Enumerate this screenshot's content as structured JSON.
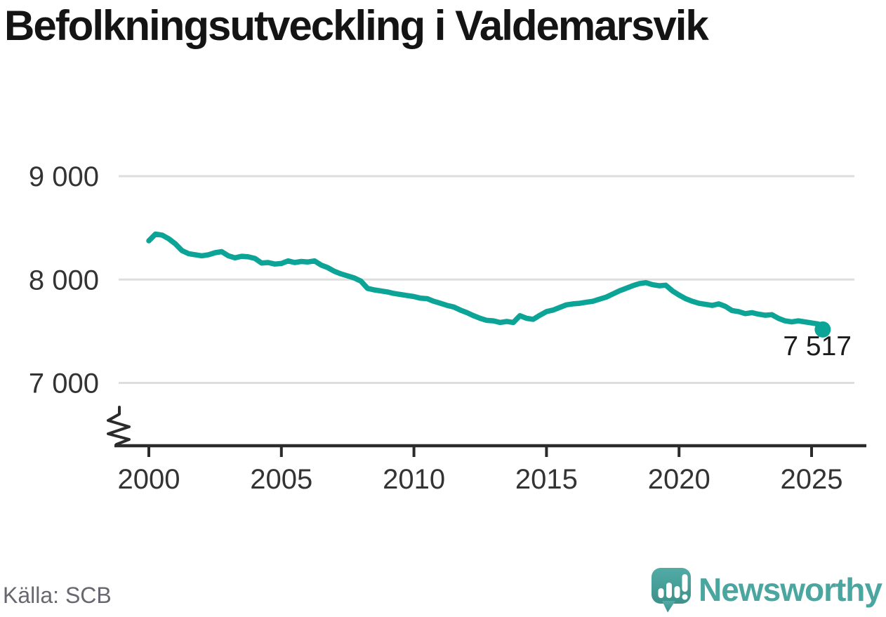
{
  "header": {
    "title": "Befolkningsutveckling i Valdemarsvik"
  },
  "footer": {
    "source": "Källa: SCB",
    "brand_name": "Newsworthy",
    "brand_color": "#4BA6A0"
  },
  "chart_data": {
    "type": "line",
    "title": "Befolkningsutveckling i Valdemarsvik",
    "xlabel": "",
    "ylabel": "",
    "line_color": "#0ca496",
    "grid": "horizontal",
    "legend": "none",
    "ylim": [
      7000,
      9000
    ],
    "y_axis_break": true,
    "x_ticks": [
      {
        "label": "2000",
        "value": 2000
      },
      {
        "label": "2005",
        "value": 2005
      },
      {
        "label": "2010",
        "value": 2010
      },
      {
        "label": "2015",
        "value": 2015
      },
      {
        "label": "2020",
        "value": 2020
      },
      {
        "label": "2025",
        "value": 2025
      }
    ],
    "y_ticks": [
      {
        "label": "9 000",
        "value": 9000
      },
      {
        "label": "8 000",
        "value": 8000
      },
      {
        "label": "7 000",
        "value": 7000
      }
    ],
    "end_label": "7 517",
    "last_value": 7517,
    "points": [
      [
        2000.0,
        8375
      ],
      [
        2000.25,
        8440
      ],
      [
        2000.5,
        8430
      ],
      [
        2000.75,
        8395
      ],
      [
        2001.0,
        8345
      ],
      [
        2001.25,
        8280
      ],
      [
        2001.5,
        8250
      ],
      [
        2001.75,
        8240
      ],
      [
        2002.0,
        8230
      ],
      [
        2002.25,
        8240
      ],
      [
        2002.5,
        8260
      ],
      [
        2002.75,
        8270
      ],
      [
        2003.0,
        8230
      ],
      [
        2003.25,
        8210
      ],
      [
        2003.5,
        8225
      ],
      [
        2003.75,
        8220
      ],
      [
        2004.0,
        8205
      ],
      [
        2004.25,
        8160
      ],
      [
        2004.5,
        8165
      ],
      [
        2004.75,
        8150
      ],
      [
        2005.0,
        8155
      ],
      [
        2005.25,
        8180
      ],
      [
        2005.5,
        8165
      ],
      [
        2005.75,
        8175
      ],
      [
        2006.0,
        8170
      ],
      [
        2006.25,
        8180
      ],
      [
        2006.5,
        8140
      ],
      [
        2006.75,
        8115
      ],
      [
        2007.0,
        8080
      ],
      [
        2007.25,
        8055
      ],
      [
        2007.5,
        8035
      ],
      [
        2007.75,
        8015
      ],
      [
        2008.0,
        7985
      ],
      [
        2008.25,
        7915
      ],
      [
        2008.5,
        7900
      ],
      [
        2008.75,
        7890
      ],
      [
        2009.0,
        7880
      ],
      [
        2009.25,
        7865
      ],
      [
        2009.5,
        7855
      ],
      [
        2009.75,
        7845
      ],
      [
        2010.0,
        7835
      ],
      [
        2010.25,
        7820
      ],
      [
        2010.5,
        7815
      ],
      [
        2010.75,
        7790
      ],
      [
        2011.0,
        7770
      ],
      [
        2011.25,
        7750
      ],
      [
        2011.5,
        7735
      ],
      [
        2011.75,
        7705
      ],
      [
        2012.0,
        7680
      ],
      [
        2012.25,
        7650
      ],
      [
        2012.5,
        7625
      ],
      [
        2012.75,
        7605
      ],
      [
        2013.0,
        7600
      ],
      [
        2013.25,
        7585
      ],
      [
        2013.5,
        7595
      ],
      [
        2013.75,
        7585
      ],
      [
        2014.0,
        7650
      ],
      [
        2014.25,
        7625
      ],
      [
        2014.5,
        7615
      ],
      [
        2014.75,
        7655
      ],
      [
        2015.0,
        7690
      ],
      [
        2015.25,
        7705
      ],
      [
        2015.5,
        7730
      ],
      [
        2015.75,
        7755
      ],
      [
        2016.0,
        7765
      ],
      [
        2016.25,
        7770
      ],
      [
        2016.5,
        7780
      ],
      [
        2016.75,
        7790
      ],
      [
        2017.0,
        7810
      ],
      [
        2017.25,
        7830
      ],
      [
        2017.5,
        7860
      ],
      [
        2017.75,
        7890
      ],
      [
        2018.0,
        7915
      ],
      [
        2018.25,
        7940
      ],
      [
        2018.5,
        7960
      ],
      [
        2018.75,
        7970
      ],
      [
        2019.0,
        7950
      ],
      [
        2019.25,
        7940
      ],
      [
        2019.5,
        7945
      ],
      [
        2019.75,
        7890
      ],
      [
        2020.0,
        7850
      ],
      [
        2020.25,
        7815
      ],
      [
        2020.5,
        7790
      ],
      [
        2020.75,
        7770
      ],
      [
        2021.0,
        7760
      ],
      [
        2021.25,
        7750
      ],
      [
        2021.5,
        7765
      ],
      [
        2021.75,
        7740
      ],
      [
        2022.0,
        7700
      ],
      [
        2022.25,
        7690
      ],
      [
        2022.5,
        7670
      ],
      [
        2022.75,
        7680
      ],
      [
        2023.0,
        7665
      ],
      [
        2023.25,
        7655
      ],
      [
        2023.5,
        7660
      ],
      [
        2023.75,
        7625
      ],
      [
        2024.0,
        7600
      ],
      [
        2024.25,
        7590
      ],
      [
        2024.5,
        7600
      ],
      [
        2024.75,
        7590
      ],
      [
        2025.0,
        7580
      ],
      [
        2025.25,
        7570
      ],
      [
        2025.42,
        7517
      ]
    ]
  }
}
